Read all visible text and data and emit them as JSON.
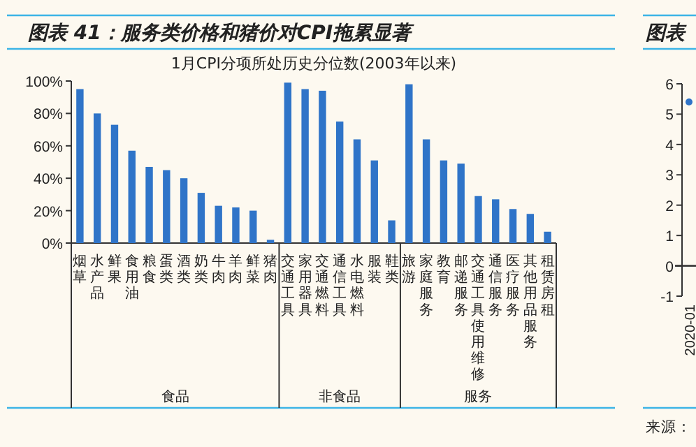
{
  "chart_data": [
    {
      "type": "bar",
      "title": "图表 41：服务类价格和猪价对CPI拖累显著",
      "subtitle": "1月CPI分项所处历史分位数(2003年以来)",
      "categories": [
        "烟草",
        "水产品",
        "鲜果",
        "食用油",
        "粮食",
        "蛋类",
        "酒类",
        "奶类",
        "牛肉",
        "羊肉",
        "鲜菜",
        "猪肉",
        "交通工具",
        "家用器具",
        "交通燃料",
        "通信工具",
        "水电燃料",
        "服装",
        "鞋类",
        "旅游",
        "家庭服务",
        "教育",
        "邮递服务",
        "交通工具使用维修",
        "通信服务",
        "医疗服务",
        "其他用品服务",
        "租赁房租"
      ],
      "series": [
        {
          "color": "#2f74c8",
          "values": [
            95,
            80,
            73,
            57,
            47,
            45,
            40,
            31,
            23,
            22,
            20,
            2,
            99,
            95,
            94,
            75,
            64,
            51,
            14,
            98,
            64,
            51,
            49,
            29,
            27,
            21,
            18,
            7
          ]
        }
      ],
      "ylim": [
        0,
        100
      ],
      "yticks": [
        {
          "value": 0,
          "label": "0%"
        },
        {
          "value": 20,
          "label": "20%"
        },
        {
          "value": 40,
          "label": "40%"
        },
        {
          "value": 60,
          "label": "60%"
        },
        {
          "value": 80,
          "label": "80%"
        },
        {
          "value": 100,
          "label": "100%"
        }
      ],
      "annotations": [
        "食品",
        "非食品",
        "服务"
      ]
    },
    {
      "type": "line",
      "title": "图表",
      "categories": [
        "2020-01"
      ],
      "series": [
        {
          "color": "#2f74c8",
          "values": [
            5.4
          ]
        }
      ],
      "marker": "circle",
      "ylim": [
        -1,
        6
      ],
      "yticks": [
        -1,
        0,
        1,
        2,
        3,
        4,
        5,
        6
      ],
      "ref_lines": [
        {
          "axis": "y",
          "value": 0
        }
      ],
      "annotations": [
        "来源："
      ]
    }
  ]
}
